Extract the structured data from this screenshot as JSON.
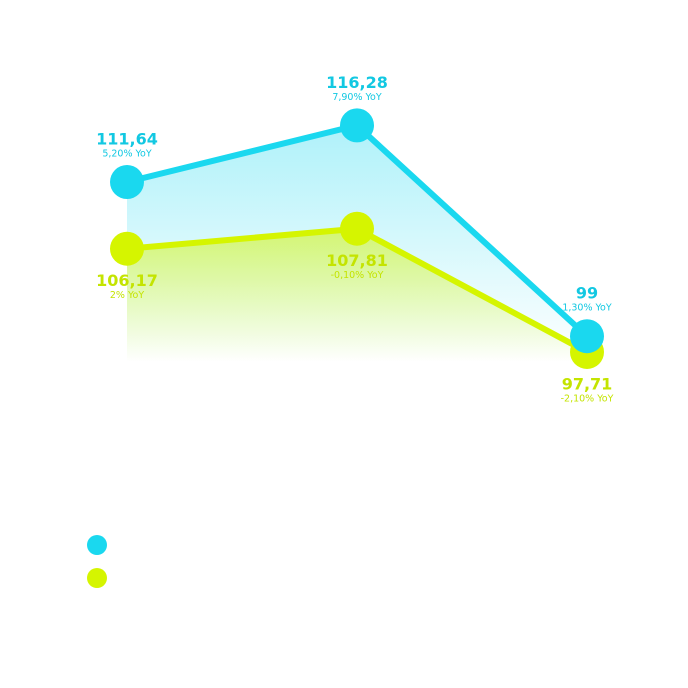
{
  "chart_data": {
    "type": "line",
    "categories": [
      null,
      null,
      null
    ],
    "series": [
      {
        "color": "#1ad8ef",
        "values": [
          111.64,
          116.28,
          99
        ],
        "value_labels": [
          "111,64",
          "116,28",
          "99"
        ],
        "yoy_labels": [
          "5,20% YoY",
          "7,90% YoY",
          "1,30% YoY"
        ],
        "label_position": "above"
      },
      {
        "color": "#d5f500",
        "values": [
          106.17,
          107.81,
          97.71
        ],
        "value_labels": [
          "106,17",
          "107,81",
          "97,71"
        ],
        "yoy_labels": [
          "2% YoY",
          "-0,10% YoY",
          "-2,10% YoY"
        ],
        "label_position": "below"
      }
    ],
    "ylim": [
      95,
      120
    ]
  }
}
